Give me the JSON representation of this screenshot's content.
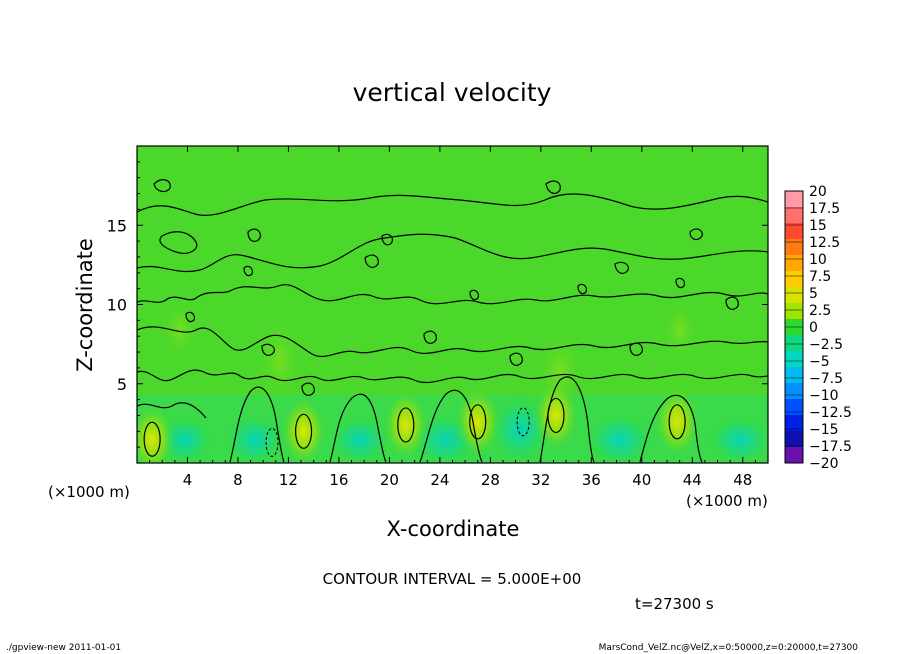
{
  "chart_data": {
    "type": "heatmap",
    "title": "vertical velocity",
    "xlabel": "X-coordinate",
    "ylabel": "Z-coordinate",
    "x_unit_left": "(×1000 m)",
    "x_unit_right": "(×1000 m)",
    "xlim": [
      0,
      50
    ],
    "ylim": [
      0,
      20
    ],
    "x_ticks": [
      4,
      8,
      12,
      16,
      20,
      24,
      28,
      32,
      36,
      40,
      44,
      48
    ],
    "y_ticks": [
      5,
      10,
      15
    ],
    "contour_interval_text": "CONTOUR INTERVAL = 5.000E+00",
    "time_text": "t=27300 s",
    "colorbar": {
      "levels": [
        20,
        17.5,
        15,
        12.5,
        10,
        7.5,
        5,
        2.5,
        0,
        -2.5,
        -5,
        -7.5,
        -10,
        -12.5,
        -15,
        -17.5,
        -20
      ],
      "level_labels": [
        "20",
        "17.5",
        "15",
        "12.5",
        "10",
        "7.5",
        "5",
        "2.5",
        "0",
        "−2.5",
        "−5",
        "−7.5",
        "−10",
        "−12.5",
        "−15",
        "−17.5",
        "−20"
      ],
      "colors": [
        "#ff9aa8",
        "#ff7070",
        "#ff4a30",
        "#ff7a10",
        "#ffa800",
        "#ffcc00",
        "#d8e200",
        "#a0e200",
        "#2fd82f",
        "#10d880",
        "#00d8c4",
        "#00bcf0",
        "#0090ff",
        "#0050ff",
        "#0020e8",
        "#1010b0",
        "#6a10b0"
      ]
    },
    "updraft_cores": [
      {
        "x": 1.2,
        "z": 1.5,
        "level": 7.5
      },
      {
        "x": 13.2,
        "z": 2.0,
        "level": 7.5
      },
      {
        "x": 21.3,
        "z": 2.4,
        "level": 5
      },
      {
        "x": 27.0,
        "z": 2.6,
        "level": 7.5
      },
      {
        "x": 33.2,
        "z": 3.0,
        "level": 7.5
      },
      {
        "x": 42.8,
        "z": 2.6,
        "level": 5
      }
    ],
    "downdraft_cores": [
      {
        "x": 10.7,
        "z": 1.3,
        "level": -5
      },
      {
        "x": 30.6,
        "z": 2.6,
        "level": -5
      }
    ]
  },
  "footer": {
    "left": "./gpview-new   2011-01-01",
    "right": "MarsCond_VelZ.nc@VelZ,x=0:50000,z=0:20000,t=27300"
  }
}
